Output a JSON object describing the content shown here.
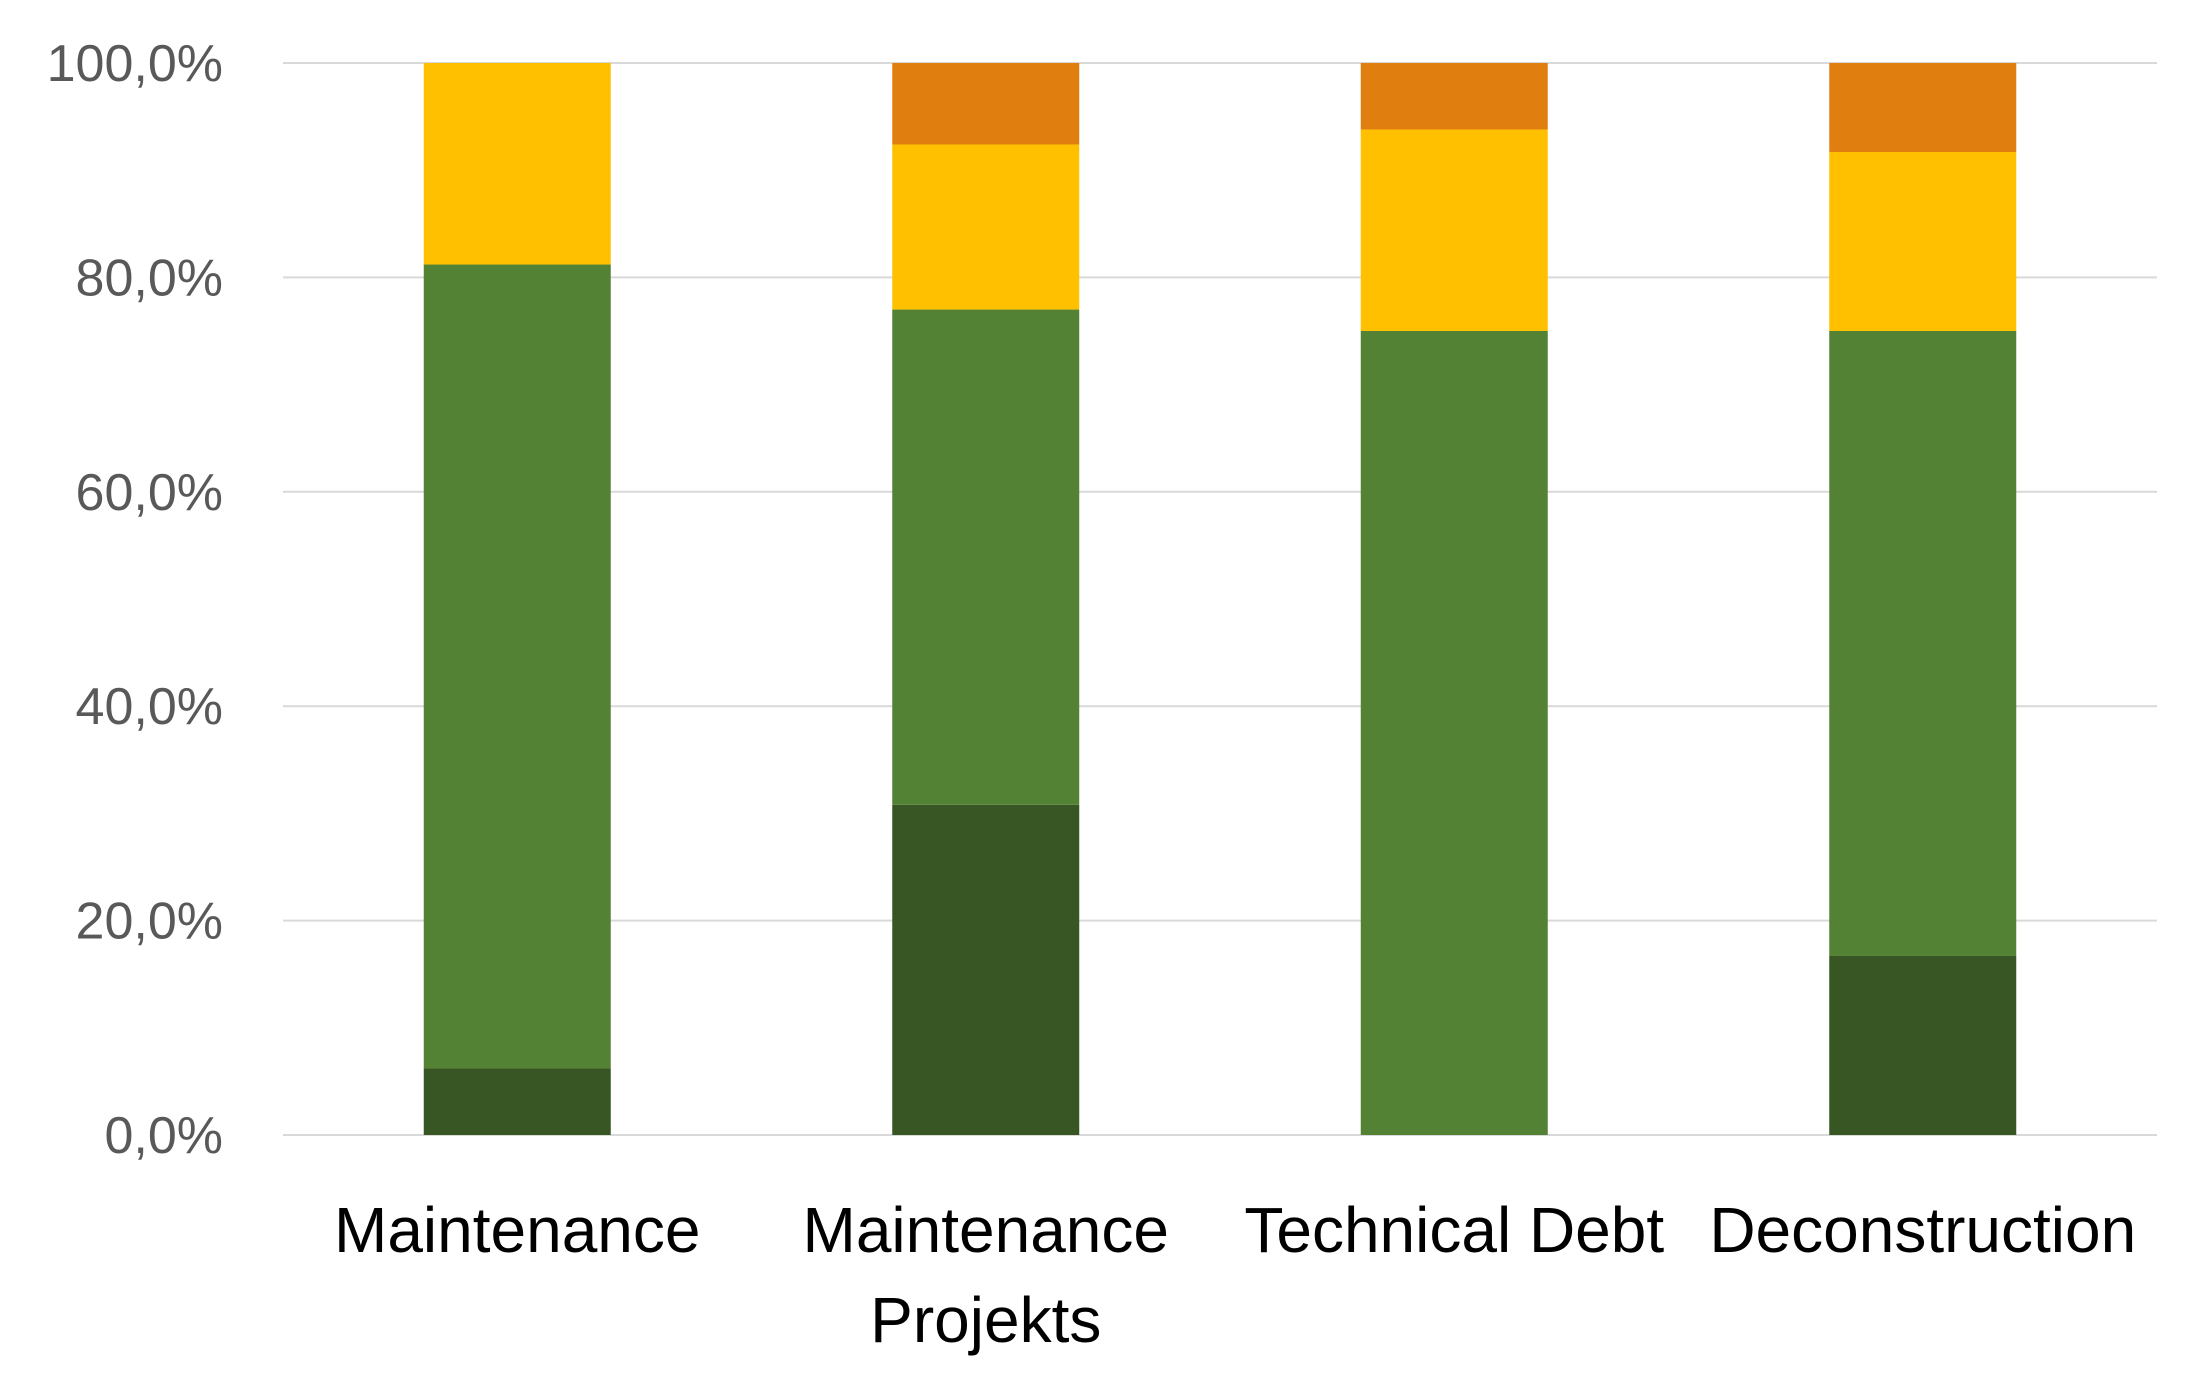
{
  "chart_data": {
    "type": "bar",
    "stacked": true,
    "normalized_percent": true,
    "categories": [
      [
        "Maintenance"
      ],
      [
        "Maintenance",
        "Projekts"
      ],
      [
        "Technical Debt"
      ],
      [
        "Deconstruction"
      ]
    ],
    "series": [
      {
        "color": "#375623",
        "values": [
          6.2,
          30.8,
          0.0,
          16.7
        ]
      },
      {
        "color": "#548235",
        "values": [
          75.0,
          46.2,
          75.0,
          58.3
        ]
      },
      {
        "color": "#FFC000",
        "values": [
          18.8,
          15.4,
          18.8,
          16.7
        ]
      },
      {
        "color": "#E07E10",
        "values": [
          0.0,
          7.6,
          6.2,
          8.3
        ]
      }
    ],
    "ylim": [
      0,
      100
    ],
    "yticks": [
      0,
      20,
      40,
      60,
      80,
      100
    ],
    "ytick_labels": [
      "0,0%",
      "20,0%",
      "40,0%",
      "60,0%",
      "80,0%",
      "100,0%"
    ],
    "grid": true,
    "gridline_color": "#d9d9d9",
    "legend": "none",
    "title": "",
    "xlabel": "",
    "ylabel": ""
  }
}
